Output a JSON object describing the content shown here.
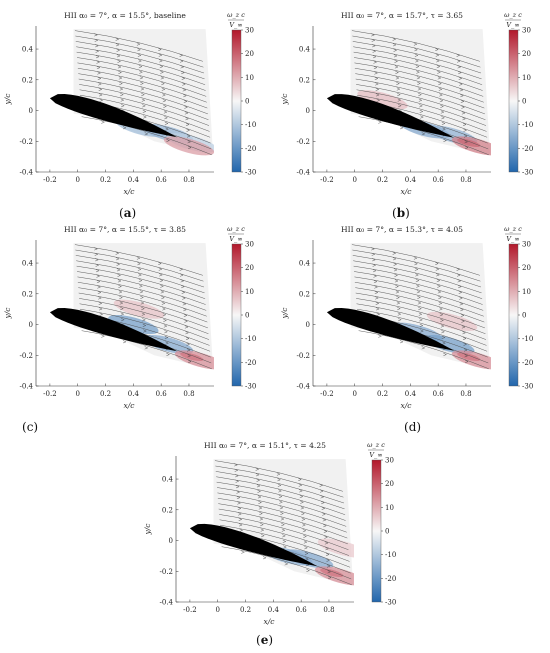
{
  "figure": {
    "panels": [
      {
        "id": "a",
        "label": "a",
        "title": "HII α₀ = 7°, α = 15.5°, baseline"
      },
      {
        "id": "b",
        "label": "b",
        "title": "HII α₀ = 7°, α = 15.7°, τ = 3.65"
      },
      {
        "id": "c",
        "label": "c",
        "title": "HII α₀ = 7°, α = 15.5°, τ = 3.85"
      },
      {
        "id": "d",
        "label": "d",
        "title": "HII α₀ = 7°, α = 15.3°, τ = 4.05"
      },
      {
        "id": "e",
        "label": "e",
        "title": "HII α₀ = 7°, α = 15.1°, τ = 4.25"
      }
    ]
  },
  "chart_data": [
    {
      "type": "heatmap",
      "panel": "a",
      "title": "HII α₀ = 7°, α = 15.5°, baseline",
      "xlabel": "x/c",
      "ylabel": "y/c",
      "xlim": [
        -0.3,
        0.98
      ],
      "ylim": [
        -0.4,
        0.55
      ],
      "xticks": [
        -0.2,
        0,
        0.2,
        0.4,
        0.6,
        0.8
      ],
      "yticks": [
        -0.4,
        -0.2,
        0,
        0.2,
        0.4
      ],
      "colorbar": {
        "label_num": "ω_z c",
        "label_den": "V_∞",
        "range": [
          -30,
          30
        ],
        "ticks": [
          30,
          20,
          10,
          0,
          -10,
          -20,
          -30
        ]
      },
      "airfoil_angle_deg": 15.5,
      "vortex_blobs": [
        {
          "x": 0.45,
          "y": -0.11,
          "value": -12
        },
        {
          "x": 0.65,
          "y": -0.15,
          "value": -14
        },
        {
          "x": 0.82,
          "y": -0.21,
          "value": -8
        },
        {
          "x": 0.8,
          "y": -0.23,
          "value": 12
        }
      ]
    },
    {
      "type": "heatmap",
      "panel": "b",
      "title": "HII α₀ = 7°, α = 15.7°, τ = 3.65",
      "xlabel": "x/c",
      "ylabel": "y/c",
      "xlim": [
        -0.3,
        0.98
      ],
      "ylim": [
        -0.4,
        0.55
      ],
      "xticks": [
        -0.2,
        0,
        0.2,
        0.4,
        0.6,
        0.8
      ],
      "yticks": [
        -0.4,
        -0.2,
        0,
        0.2,
        0.4
      ],
      "colorbar": {
        "label_num": "ω_z c",
        "label_den": "V_∞",
        "range": [
          -30,
          30
        ],
        "ticks": [
          30,
          20,
          10,
          0,
          -10,
          -20,
          -30
        ]
      },
      "airfoil_angle_deg": 15.7,
      "vortex_blobs": [
        {
          "x": 0.2,
          "y": 0.07,
          "value": 8
        },
        {
          "x": 0.2,
          "y": -0.02,
          "value": -18
        },
        {
          "x": 0.5,
          "y": -0.12,
          "value": -16
        },
        {
          "x": 0.7,
          "y": -0.16,
          "value": -14
        },
        {
          "x": 0.82,
          "y": -0.21,
          "value": 28
        },
        {
          "x": 0.88,
          "y": -0.23,
          "value": 16
        }
      ]
    },
    {
      "type": "heatmap",
      "panel": "c",
      "title": "HII α₀ = 7°, α = 15.5°, τ = 3.85",
      "xlabel": "x/c",
      "ylabel": "y/c",
      "xlim": [
        -0.3,
        0.98
      ],
      "ylim": [
        -0.4,
        0.55
      ],
      "xticks": [
        -0.2,
        0,
        0.2,
        0.4,
        0.6,
        0.8
      ],
      "yticks": [
        -0.4,
        -0.2,
        0,
        0.2,
        0.4
      ],
      "colorbar": {
        "label_num": "ω_z c",
        "label_den": "V_∞",
        "range": [
          -30,
          30
        ],
        "ticks": [
          30,
          20,
          10,
          0,
          -10,
          -20,
          -30
        ]
      },
      "airfoil_angle_deg": 15.5,
      "vortex_blobs": [
        {
          "x": 0.44,
          "y": 0.1,
          "value": 7
        },
        {
          "x": 0.4,
          "y": 0.0,
          "value": -18
        },
        {
          "x": 0.65,
          "y": -0.13,
          "value": -16
        },
        {
          "x": 0.82,
          "y": -0.21,
          "value": 28
        },
        {
          "x": 0.88,
          "y": -0.23,
          "value": 14
        }
      ]
    },
    {
      "type": "heatmap",
      "panel": "d",
      "title": "HII α₀ = 7°, α = 15.3°, τ = 4.05",
      "xlabel": "x/c",
      "ylabel": "y/c",
      "xlim": [
        -0.3,
        0.98
      ],
      "ylim": [
        -0.4,
        0.55
      ],
      "xticks": [
        -0.2,
        0,
        0.2,
        0.4,
        0.6,
        0.8
      ],
      "yticks": [
        -0.4,
        -0.2,
        0,
        0.2,
        0.4
      ],
      "colorbar": {
        "label_num": "ω_z c",
        "label_den": "V_∞",
        "range": [
          -30,
          30
        ],
        "ticks": [
          30,
          20,
          10,
          0,
          -10,
          -20,
          -30
        ]
      },
      "airfoil_angle_deg": 15.3,
      "vortex_blobs": [
        {
          "x": 0.7,
          "y": 0.02,
          "value": 7
        },
        {
          "x": 0.45,
          "y": -0.05,
          "value": -16
        },
        {
          "x": 0.68,
          "y": -0.13,
          "value": -18
        },
        {
          "x": 0.82,
          "y": -0.21,
          "value": 28
        },
        {
          "x": 0.88,
          "y": -0.23,
          "value": 14
        }
      ]
    },
    {
      "type": "heatmap",
      "panel": "e",
      "title": "HII α₀ = 7°, α = 15.1°, τ = 4.25",
      "xlabel": "x/c",
      "ylabel": "y/c",
      "xlim": [
        -0.3,
        0.98
      ],
      "ylim": [
        -0.4,
        0.55
      ],
      "xticks": [
        -0.2,
        0,
        0.2,
        0.4,
        0.6,
        0.8
      ],
      "yticks": [
        -0.4,
        -0.2,
        0,
        0.2,
        0.4
      ],
      "colorbar": {
        "label_num": "ω_z c",
        "label_den": "V_∞",
        "range": [
          -30,
          30
        ],
        "ticks": [
          30,
          20,
          10,
          0,
          -10,
          -20,
          -30
        ]
      },
      "airfoil_angle_deg": 15.1,
      "vortex_blobs": [
        {
          "x": 0.9,
          "y": -0.05,
          "value": 6
        },
        {
          "x": 0.5,
          "y": -0.1,
          "value": -15
        },
        {
          "x": 0.65,
          "y": -0.12,
          "value": -16
        },
        {
          "x": 0.82,
          "y": -0.21,
          "value": 28
        },
        {
          "x": 0.88,
          "y": -0.23,
          "value": 14
        }
      ]
    }
  ]
}
